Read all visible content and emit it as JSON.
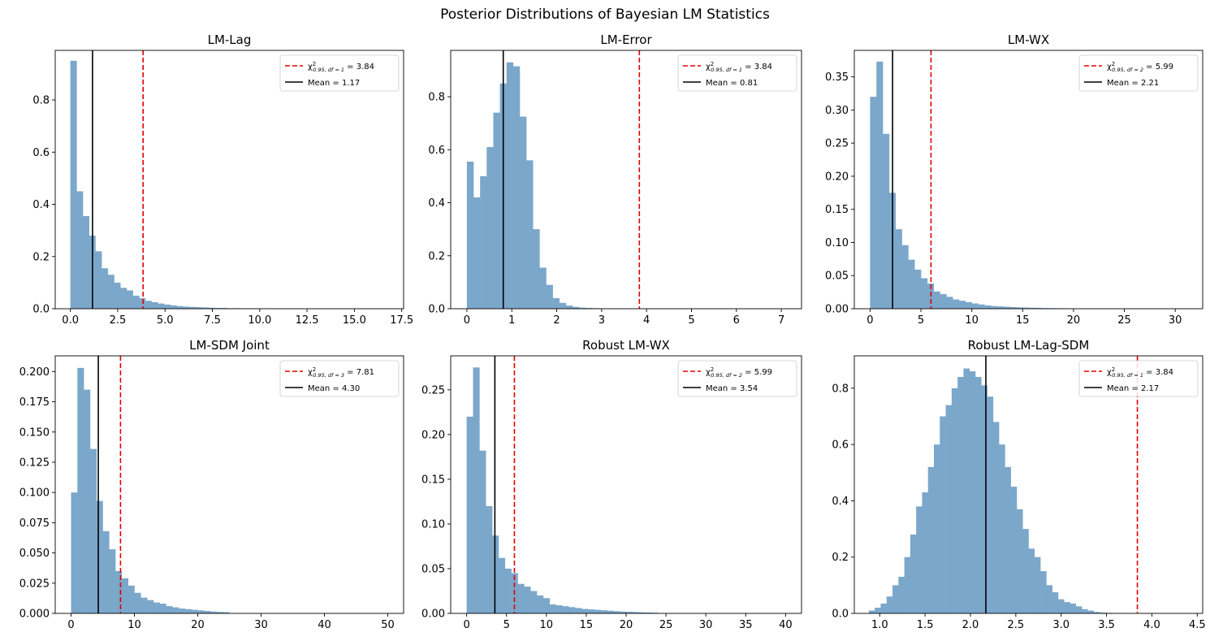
{
  "title": "Posterior Distributions of Bayesian LM Statistics",
  "colors": {
    "bar": "#7ba7cb",
    "critical": "#e00000",
    "mean": "#000000"
  },
  "chart_data": [
    {
      "type": "bar",
      "title": "LM-Lag",
      "xlim": [
        -0.8,
        17.6
      ],
      "ylim": [
        0,
        0.99
      ],
      "xticks": [
        0.0,
        2.5,
        5.0,
        7.5,
        10.0,
        12.5,
        15.0,
        17.5
      ],
      "xtick_labels": [
        "0.0",
        "2.5",
        "5.0",
        "7.5",
        "10.0",
        "12.5",
        "15.0",
        "17.5"
      ],
      "yticks": [
        0.0,
        0.2,
        0.4,
        0.6,
        0.8
      ],
      "ytick_labels": [
        "0.0",
        "0.2",
        "0.4",
        "0.6",
        "0.8"
      ],
      "bin_start": 0.0,
      "bin_width": 0.33,
      "values": [
        0.95,
        0.45,
        0.355,
        0.28,
        0.22,
        0.155,
        0.13,
        0.1,
        0.08,
        0.07,
        0.05,
        0.04,
        0.03,
        0.025,
        0.02,
        0.016,
        0.013,
        0.01,
        0.008,
        0.007,
        0.006,
        0.005,
        0.004,
        0.003,
        0.003,
        0.002,
        0.002,
        0.0015,
        0.0012,
        0.001,
        0.001,
        0.0008,
        0.0006,
        0.0005,
        0.0004,
        0.0003
      ],
      "critical_value": 3.84,
      "critical_df": "1",
      "mean": 1.17,
      "legend": {
        "critical_prefix": "χ",
        "critical_sup": "2",
        "critical_sub": "0.95, df = 1",
        "critical_value_text": " = 3.84",
        "mean_label": "Mean = 1.17"
      }
    },
    {
      "type": "bar",
      "title": "LM-Error",
      "xlim": [
        -0.36,
        7.45
      ],
      "ylim": [
        0,
        0.975
      ],
      "xticks": [
        0,
        1,
        2,
        3,
        4,
        5,
        6,
        7
      ],
      "xtick_labels": [
        "0",
        "1",
        "2",
        "3",
        "4",
        "5",
        "6",
        "7"
      ],
      "yticks": [
        0.0,
        0.2,
        0.4,
        0.6,
        0.8
      ],
      "ytick_labels": [
        "0.0",
        "0.2",
        "0.4",
        "0.6",
        "0.8"
      ],
      "bin_start": 0.0,
      "bin_width": 0.147,
      "values": [
        0.555,
        0.42,
        0.5,
        0.61,
        0.74,
        0.85,
        0.93,
        0.915,
        0.725,
        0.56,
        0.3,
        0.155,
        0.09,
        0.04,
        0.022,
        0.012,
        0.007,
        0.004,
        0.003,
        0.002,
        0.0015,
        0.001
      ],
      "critical_value": 3.84,
      "critical_df": "1",
      "mean": 0.81,
      "legend": {
        "critical_prefix": "χ",
        "critical_sup": "2",
        "critical_sub": "0.95, df = 1",
        "critical_value_text": " = 3.84",
        "mean_label": "Mean = 0.81"
      }
    },
    {
      "type": "bar",
      "title": "LM-WX",
      "xlim": [
        -1.55,
        32.7
      ],
      "ylim": [
        0,
        0.39
      ],
      "xticks": [
        0,
        5,
        10,
        15,
        20,
        25,
        30
      ],
      "xtick_labels": [
        "0",
        "5",
        "10",
        "15",
        "20",
        "25",
        "30"
      ],
      "yticks": [
        0.0,
        0.05,
        0.1,
        0.15,
        0.2,
        0.25,
        0.3,
        0.35
      ],
      "ytick_labels": [
        "0.00",
        "0.05",
        "0.10",
        "0.15",
        "0.20",
        "0.25",
        "0.30",
        "0.35"
      ],
      "bin_start": 0.0,
      "bin_width": 0.625,
      "values": [
        0.32,
        0.373,
        0.264,
        0.175,
        0.12,
        0.096,
        0.074,
        0.059,
        0.046,
        0.038,
        0.026,
        0.022,
        0.018,
        0.014,
        0.012,
        0.01,
        0.008,
        0.0065,
        0.005,
        0.004,
        0.0035,
        0.003,
        0.0025,
        0.002,
        0.0018,
        0.0015,
        0.0013,
        0.001,
        0.0009,
        0.0008,
        0.0007
      ],
      "critical_value": 5.99,
      "critical_df": "2",
      "mean": 2.21,
      "legend": {
        "critical_prefix": "χ",
        "critical_sup": "2",
        "critical_sub": "0.95, df = 2",
        "critical_value_text": " = 5.99",
        "mean_label": "Mean = 2.21"
      }
    },
    {
      "type": "bar",
      "title": "LM-SDM Joint",
      "xlim": [
        -2.5,
        52.5
      ],
      "ylim": [
        0,
        0.213
      ],
      "xticks": [
        0,
        10,
        20,
        30,
        40,
        50
      ],
      "xtick_labels": [
        "0",
        "10",
        "20",
        "30",
        "40",
        "50"
      ],
      "yticks": [
        0.0,
        0.025,
        0.05,
        0.075,
        0.1,
        0.125,
        0.15,
        0.175,
        0.2
      ],
      "ytick_labels": [
        "0.000",
        "0.025",
        "0.050",
        "0.075",
        "0.100",
        "0.125",
        "0.150",
        "0.175",
        "0.200"
      ],
      "bin_start": 0.0,
      "bin_width": 1.0,
      "values": [
        0.1,
        0.203,
        0.185,
        0.136,
        0.093,
        0.068,
        0.053,
        0.035,
        0.029,
        0.023,
        0.017,
        0.013,
        0.011,
        0.009,
        0.008,
        0.006,
        0.005,
        0.004,
        0.0035,
        0.003,
        0.0025,
        0.002,
        0.0015,
        0.0012,
        0.001
      ],
      "critical_value": 7.81,
      "critical_df": "3",
      "mean": 4.3,
      "legend": {
        "critical_prefix": "χ",
        "critical_sup": "2",
        "critical_sub": "0.95, df = 3",
        "critical_value_text": " = 7.81",
        "mean_label": "Mean = 4.30"
      }
    },
    {
      "type": "bar",
      "title": "Robust LM-WX",
      "xlim": [
        -2.0,
        42.0
      ],
      "ylim": [
        0,
        0.288
      ],
      "xticks": [
        0,
        5,
        10,
        15,
        20,
        25,
        30,
        35,
        40
      ],
      "xtick_labels": [
        "0",
        "5",
        "10",
        "15",
        "20",
        "25",
        "30",
        "35",
        "40"
      ],
      "yticks": [
        0.0,
        0.05,
        0.1,
        0.15,
        0.2,
        0.25
      ],
      "ytick_labels": [
        "0.00",
        "0.05",
        "0.10",
        "0.15",
        "0.20",
        "0.25"
      ],
      "bin_start": 0.0,
      "bin_width": 0.8,
      "values": [
        0.22,
        0.275,
        0.182,
        0.12,
        0.087,
        0.062,
        0.05,
        0.045,
        0.033,
        0.03,
        0.025,
        0.02,
        0.017,
        0.01,
        0.009,
        0.008,
        0.007,
        0.006,
        0.005,
        0.0045,
        0.004,
        0.0035,
        0.003,
        0.0025,
        0.002,
        0.0018,
        0.0015,
        0.0012,
        0.001,
        0.0008
      ],
      "critical_value": 5.99,
      "critical_df": "2",
      "mean": 3.54,
      "legend": {
        "critical_prefix": "χ",
        "critical_sup": "2",
        "critical_sub": "0.95, df = 2",
        "critical_value_text": " = 5.99",
        "mean_label": "Mean = 3.54"
      }
    },
    {
      "type": "bar",
      "title": "Robust LM-Lag-SDM",
      "xlim": [
        0.72,
        4.56
      ],
      "ylim": [
        0,
        0.915
      ],
      "xticks": [
        1.0,
        1.5,
        2.0,
        2.5,
        3.0,
        3.5,
        4.0,
        4.5
      ],
      "xtick_labels": [
        "1.0",
        "1.5",
        "2.0",
        "2.5",
        "3.0",
        "3.5",
        "4.0",
        "4.5"
      ],
      "yticks": [
        0.0,
        0.2,
        0.4,
        0.6,
        0.8
      ],
      "ytick_labels": [
        "0.0",
        "0.2",
        "0.4",
        "0.6",
        "0.8"
      ],
      "bin_start": 0.88,
      "bin_width": 0.0652,
      "values": [
        0.01,
        0.02,
        0.035,
        0.06,
        0.1,
        0.13,
        0.2,
        0.28,
        0.38,
        0.43,
        0.52,
        0.6,
        0.7,
        0.74,
        0.8,
        0.84,
        0.87,
        0.86,
        0.84,
        0.81,
        0.77,
        0.68,
        0.6,
        0.52,
        0.45,
        0.37,
        0.3,
        0.23,
        0.2,
        0.15,
        0.1,
        0.075,
        0.05,
        0.04,
        0.035,
        0.025,
        0.015,
        0.01,
        0.005,
        0.003,
        0.002,
        0.001,
        0.001
      ],
      "critical_value": 3.84,
      "critical_df": "1",
      "mean": 2.17,
      "legend": {
        "critical_prefix": "χ",
        "critical_sup": "2",
        "critical_sub": "0.95, df = 1",
        "critical_value_text": " = 3.84",
        "mean_label": "Mean = 2.17"
      }
    }
  ]
}
